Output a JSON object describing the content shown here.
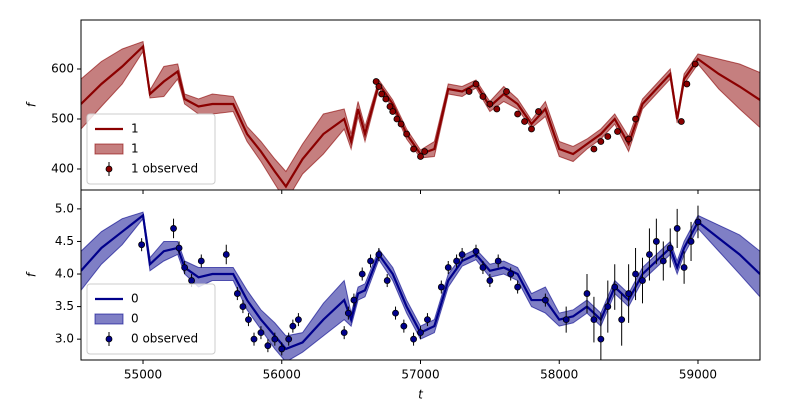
{
  "chart_data": [
    {
      "type": "line",
      "ylabel": "f",
      "legend": "lower left",
      "xlim": [
        54553,
        59447
      ],
      "ylim": [
        358,
        698
      ],
      "xticks": [
        55000,
        56000,
        57000,
        58000,
        59000
      ],
      "show_xticklabels": false,
      "yticks": [
        400,
        500,
        600
      ],
      "series": [
        {
          "name": "1",
          "kind": "line",
          "color": "#8b0000",
          "x": [
            54553,
            54700,
            54850,
            55000,
            55050,
            55150,
            55250,
            55300,
            55400,
            55500,
            55650,
            55750,
            55850,
            55950,
            56030,
            56150,
            56300,
            56450,
            56500,
            56550,
            56600,
            56700,
            56800,
            56900,
            57000,
            57100,
            57200,
            57300,
            57400,
            57500,
            57600,
            57700,
            57800,
            57900,
            58000,
            58100,
            58200,
            58300,
            58400,
            58500,
            58600,
            58700,
            58800,
            58850,
            58900,
            59000,
            59150,
            59300,
            59447
          ],
          "values": [
            530,
            570,
            605,
            645,
            550,
            575,
            595,
            540,
            525,
            530,
            530,
            470,
            435,
            395,
            365,
            420,
            470,
            500,
            455,
            520,
            470,
            570,
            530,
            470,
            430,
            440,
            560,
            555,
            570,
            525,
            550,
            530,
            490,
            520,
            440,
            430,
            450,
            470,
            500,
            450,
            530,
            560,
            590,
            500,
            580,
            620,
            590,
            565,
            538
          ]
        },
        {
          "name": "1",
          "kind": "band",
          "color": "#8b0000",
          "x": [
            54553,
            54700,
            54850,
            55000,
            55050,
            55150,
            55250,
            55300,
            55400,
            55500,
            55650,
            55750,
            55850,
            55950,
            56030,
            56150,
            56300,
            56450,
            56500,
            56550,
            56600,
            56700,
            56800,
            56900,
            57000,
            57100,
            57200,
            57300,
            57400,
            57500,
            57600,
            57700,
            57800,
            57900,
            58000,
            58100,
            58200,
            58300,
            58400,
            58500,
            58600,
            58700,
            58800,
            58850,
            58900,
            59000,
            59150,
            59300,
            59447
          ],
          "lower": [
            480,
            525,
            570,
            635,
            542,
            545,
            580,
            530,
            510,
            510,
            515,
            455,
            415,
            370,
            335,
            390,
            430,
            480,
            440,
            505,
            455,
            562,
            522,
            460,
            422,
            425,
            550,
            545,
            562,
            515,
            535,
            520,
            482,
            505,
            425,
            415,
            440,
            460,
            490,
            435,
            520,
            550,
            580,
            492,
            570,
            610,
            560,
            520,
            483
          ],
          "upper": [
            580,
            615,
            640,
            655,
            558,
            605,
            610,
            550,
            540,
            550,
            545,
            485,
            455,
            420,
            395,
            450,
            510,
            520,
            470,
            535,
            485,
            578,
            538,
            480,
            438,
            455,
            570,
            565,
            578,
            535,
            565,
            540,
            498,
            535,
            455,
            445,
            460,
            480,
            510,
            465,
            540,
            570,
            600,
            508,
            590,
            630,
            620,
            610,
            593
          ]
        },
        {
          "name": "1 observed",
          "kind": "errorbar",
          "color": "#8b0000",
          "x": [
            56680,
            56700,
            56720,
            56750,
            56780,
            56800,
            56830,
            56860,
            56900,
            56950,
            57000,
            57030,
            57350,
            57400,
            57450,
            57500,
            57550,
            57620,
            57700,
            57750,
            57800,
            57850,
            58250,
            58300,
            58350,
            58420,
            58500,
            58550,
            58880,
            58920,
            58980
          ],
          "values": [
            575,
            565,
            550,
            540,
            525,
            515,
            500,
            490,
            470,
            440,
            425,
            435,
            555,
            570,
            545,
            530,
            520,
            555,
            510,
            495,
            480,
            515,
            440,
            455,
            465,
            475,
            460,
            500,
            495,
            570,
            610
          ],
          "errors": [
            5,
            5,
            5,
            5,
            5,
            5,
            5,
            5,
            5,
            5,
            5,
            5,
            5,
            5,
            5,
            5,
            5,
            5,
            5,
            5,
            5,
            5,
            5,
            5,
            5,
            5,
            5,
            5,
            5,
            5,
            5
          ]
        }
      ]
    },
    {
      "type": "line",
      "ylabel": "f",
      "xlabel": "t",
      "legend": "lower left",
      "xlim": [
        54553,
        59447
      ],
      "ylim": [
        2.68,
        5.29
      ],
      "xticks": [
        55000,
        56000,
        57000,
        58000,
        59000
      ],
      "show_xticklabels": true,
      "yticks": [
        {
          "value": 3,
          "label": "3.0"
        },
        3.5,
        {
          "value": 4,
          "label": "4.0"
        },
        4.5,
        {
          "value": 5,
          "label": "5.0"
        }
      ],
      "series": [
        {
          "name": "0",
          "kind": "line",
          "color": "#00008b",
          "x": [
            54553,
            54700,
            54850,
            55000,
            55050,
            55150,
            55250,
            55300,
            55400,
            55500,
            55650,
            55750,
            55850,
            55950,
            56030,
            56150,
            56300,
            56450,
            56500,
            56550,
            56600,
            56700,
            56800,
            56900,
            57000,
            57100,
            57200,
            57300,
            57400,
            57500,
            57600,
            57700,
            57800,
            57900,
            58000,
            58100,
            58200,
            58300,
            58400,
            58500,
            58600,
            58700,
            58800,
            58850,
            58900,
            59000,
            59150,
            59300,
            59447
          ],
          "values": [
            4.05,
            4.4,
            4.65,
            4.9,
            4.15,
            4.35,
            4.4,
            4.1,
            3.95,
            4.0,
            4.0,
            3.6,
            3.3,
            3.05,
            2.85,
            2.95,
            3.3,
            3.6,
            3.3,
            3.7,
            3.75,
            4.3,
            4.0,
            3.5,
            3.1,
            3.2,
            3.9,
            4.2,
            4.3,
            4.05,
            4.1,
            4.0,
            3.6,
            3.6,
            3.3,
            3.35,
            3.5,
            3.3,
            3.8,
            3.6,
            4.0,
            4.2,
            4.4,
            4.1,
            4.4,
            4.8,
            4.55,
            4.3,
            4.0
          ]
        },
        {
          "name": "0",
          "kind": "band",
          "color": "#00008b",
          "x": [
            54553,
            54700,
            54850,
            55000,
            55050,
            55150,
            55250,
            55300,
            55400,
            55500,
            55650,
            55750,
            55850,
            55950,
            56030,
            56150,
            56300,
            56450,
            56500,
            56550,
            56600,
            56700,
            56800,
            56900,
            57000,
            57100,
            57200,
            57300,
            57400,
            57500,
            57600,
            57700,
            57800,
            57900,
            58000,
            58100,
            58200,
            58300,
            58400,
            58500,
            58600,
            58700,
            58800,
            58850,
            58900,
            59000,
            59150,
            59300,
            59447
          ],
          "lower": [
            3.75,
            4.15,
            4.45,
            4.85,
            4.05,
            4.2,
            4.3,
            4.0,
            3.8,
            3.9,
            3.9,
            3.45,
            3.15,
            2.85,
            2.65,
            2.8,
            3.05,
            3.3,
            3.2,
            3.6,
            3.65,
            4.22,
            3.9,
            3.4,
            3.0,
            3.1,
            3.8,
            4.12,
            4.22,
            3.95,
            4.0,
            3.9,
            3.5,
            3.4,
            3.2,
            3.25,
            3.4,
            3.2,
            3.7,
            3.5,
            3.9,
            4.1,
            4.3,
            4.0,
            4.3,
            4.7,
            4.35,
            4.0,
            3.65
          ],
          "upper": [
            4.35,
            4.65,
            4.85,
            4.95,
            4.25,
            4.5,
            4.5,
            4.2,
            4.1,
            4.1,
            4.1,
            3.75,
            3.45,
            3.25,
            3.05,
            3.1,
            3.55,
            3.9,
            3.4,
            3.8,
            3.85,
            4.38,
            4.1,
            3.6,
            3.2,
            3.3,
            4.0,
            4.28,
            4.38,
            4.15,
            4.2,
            4.1,
            3.7,
            3.8,
            3.4,
            3.45,
            3.6,
            3.4,
            3.9,
            3.7,
            4.1,
            4.3,
            4.5,
            4.2,
            4.5,
            4.9,
            4.75,
            4.6,
            4.35
          ]
        },
        {
          "name": "0 observed",
          "kind": "errorbar",
          "color": "#00008b",
          "x": [
            54990,
            55220,
            55260,
            55300,
            55350,
            55420,
            55600,
            55680,
            55720,
            55760,
            55800,
            55850,
            55900,
            55950,
            56000,
            56050,
            56080,
            56120,
            56450,
            56480,
            56520,
            56580,
            56640,
            56700,
            56760,
            56820,
            56880,
            56950,
            57000,
            57050,
            57150,
            57200,
            57260,
            57300,
            57400,
            57450,
            57500,
            57560,
            57650,
            57700,
            57900,
            58050,
            58200,
            58250,
            58300,
            58350,
            58400,
            58450,
            58500,
            58550,
            58600,
            58650,
            58700,
            58750,
            58800,
            58850,
            58900,
            58950,
            59000
          ],
          "values": [
            4.45,
            4.7,
            4.4,
            4.1,
            3.9,
            4.2,
            4.3,
            3.7,
            3.5,
            3.3,
            3.0,
            3.1,
            2.9,
            3.0,
            2.85,
            3.0,
            3.2,
            3.3,
            3.1,
            3.4,
            3.6,
            4.0,
            4.2,
            4.3,
            3.9,
            3.4,
            3.2,
            3.0,
            3.1,
            3.3,
            3.8,
            4.1,
            4.2,
            4.3,
            4.35,
            4.1,
            3.9,
            4.2,
            4.0,
            3.8,
            3.6,
            3.3,
            3.7,
            3.3,
            3.0,
            3.5,
            3.8,
            3.3,
            3.7,
            4.0,
            3.9,
            4.3,
            4.5,
            4.2,
            4.4,
            4.7,
            4.1,
            4.5,
            4.8
          ],
          "errors": [
            0.1,
            0.15,
            0.1,
            0.1,
            0.1,
            0.1,
            0.15,
            0.1,
            0.1,
            0.1,
            0.1,
            0.1,
            0.1,
            0.1,
            0.1,
            0.1,
            0.1,
            0.1,
            0.1,
            0.1,
            0.1,
            0.1,
            0.1,
            0.1,
            0.1,
            0.1,
            0.1,
            0.1,
            0.1,
            0.1,
            0.1,
            0.1,
            0.1,
            0.1,
            0.1,
            0.1,
            0.1,
            0.1,
            0.1,
            0.1,
            0.1,
            0.2,
            0.3,
            0.35,
            0.4,
            0.4,
            0.35,
            0.4,
            0.45,
            0.4,
            0.35,
            0.4,
            0.35,
            0.3,
            0.3,
            0.3,
            0.25,
            0.3,
            0.25
          ]
        }
      ]
    }
  ]
}
